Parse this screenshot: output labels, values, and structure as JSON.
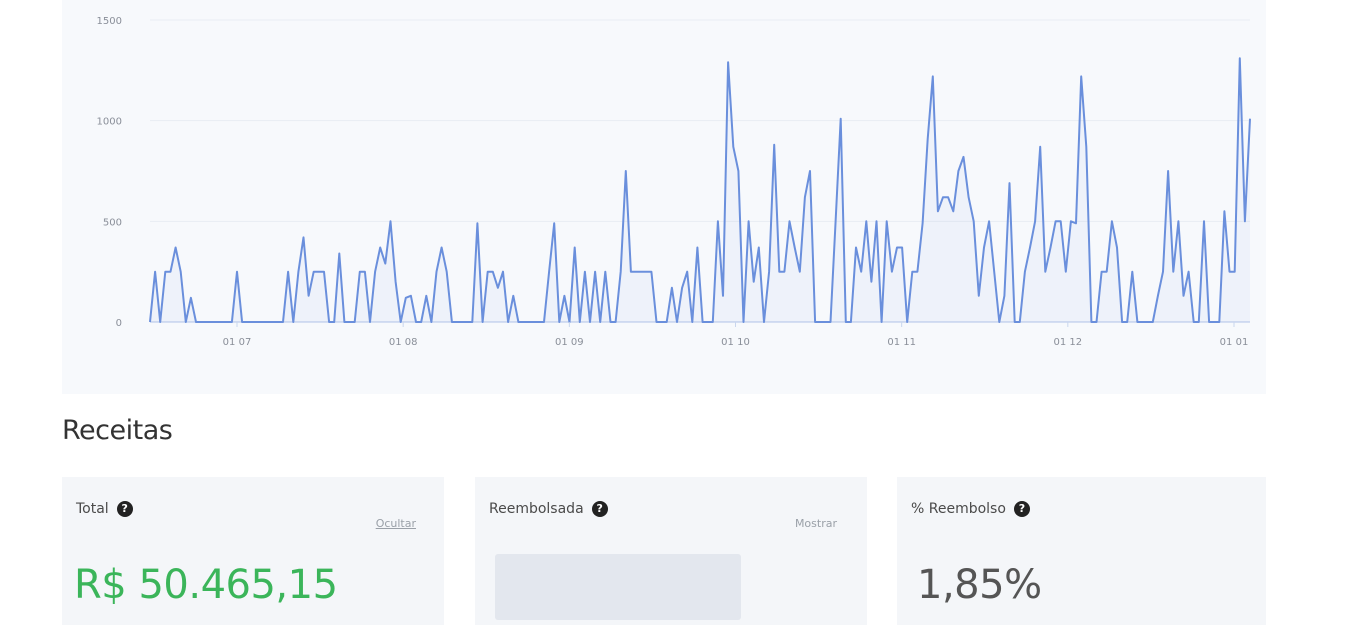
{
  "chart_data": {
    "type": "line",
    "ylim": [
      0,
      1500
    ],
    "y_ticks": [
      "0",
      "500",
      "1000",
      "1500"
    ],
    "x_tick_labels": [
      "01 07",
      "01 08",
      "01 09",
      "01 10",
      "01 11",
      "01 12",
      "01 01"
    ],
    "series_color": "#6a8fdc",
    "grid": true,
    "series": [
      {
        "values": [
          0,
          250,
          0,
          250,
          250,
          370,
          250,
          0,
          120,
          0,
          0,
          0,
          0,
          0,
          0,
          0,
          0,
          250,
          0,
          0,
          0,
          0,
          0,
          0,
          0,
          0,
          0,
          250,
          0,
          250,
          420,
          130,
          250,
          250,
          250,
          0,
          0,
          340,
          0,
          0,
          0,
          250,
          250,
          0,
          250,
          370,
          290,
          500,
          200,
          0,
          120,
          130,
          0,
          0,
          130,
          0,
          250,
          370,
          250,
          0,
          0,
          0,
          0,
          0,
          490,
          0,
          250,
          250,
          170,
          250,
          0,
          130,
          0,
          0,
          0,
          0,
          0,
          0,
          250,
          490,
          0,
          130,
          0,
          370,
          0,
          250,
          0,
          250,
          0,
          250,
          0,
          0,
          250,
          750,
          250,
          250,
          250,
          250,
          250,
          0,
          0,
          0,
          170,
          0,
          170,
          250,
          0,
          370,
          0,
          0,
          0,
          500,
          130,
          1290,
          870,
          750,
          0,
          500,
          200,
          370,
          0,
          250,
          880,
          250,
          250,
          500,
          370,
          250,
          620,
          750,
          0,
          0,
          0,
          0,
          500,
          1010,
          0,
          0,
          370,
          250,
          500,
          200,
          500,
          0,
          500,
          250,
          370,
          370,
          0,
          250,
          250,
          490,
          910,
          1220,
          550,
          620,
          620,
          550,
          750,
          820,
          620,
          500,
          130,
          370,
          500,
          250,
          0,
          130,
          690,
          0,
          0,
          250,
          370,
          500,
          870,
          250,
          370,
          500,
          500,
          250,
          500,
          490,
          1220,
          870,
          0,
          0,
          250,
          250,
          500,
          370,
          0,
          0,
          250,
          0,
          0,
          0,
          0,
          130,
          250,
          750,
          250,
          500,
          130,
          250,
          0,
          0,
          500,
          0,
          0,
          0,
          550,
          250,
          250,
          1310,
          500,
          1010
        ]
      }
    ]
  },
  "section": {
    "title": "Receitas"
  },
  "cards": {
    "total": {
      "label": "Total",
      "action": "Ocultar",
      "value": "R$ 50.465,15",
      "value_color": "#3bb55a"
    },
    "refunded": {
      "label": "Reembolsada",
      "action": "Mostrar"
    },
    "pct": {
      "label": "% Reembolso",
      "value": "1,85%"
    }
  },
  "icons": {
    "help": "question-circle-icon"
  }
}
